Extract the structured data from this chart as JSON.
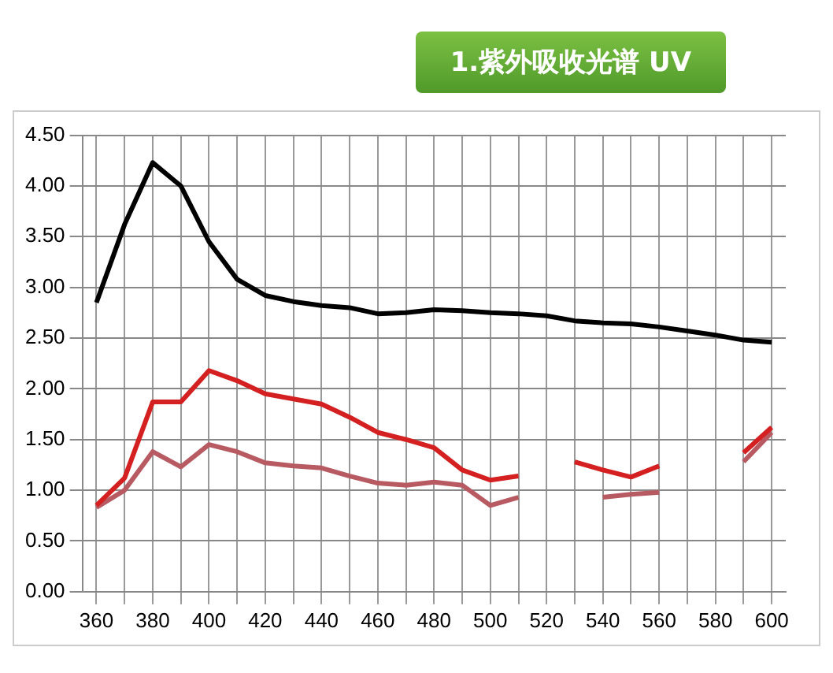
{
  "chart_data": {
    "type": "line",
    "title": "1.紫外吸收光谱 UV",
    "x": [
      360,
      370,
      380,
      390,
      400,
      410,
      420,
      430,
      440,
      450,
      460,
      470,
      480,
      490,
      500,
      510,
      520,
      530,
      540,
      550,
      560,
      570,
      580,
      590,
      600
    ],
    "series": [
      {
        "color": "#000000",
        "values": [
          2.85,
          3.62,
          4.23,
          4.0,
          3.45,
          3.08,
          2.92,
          2.86,
          2.82,
          2.8,
          2.74,
          2.75,
          2.78,
          2.77,
          2.75,
          2.74,
          2.72,
          2.67,
          2.65,
          2.64,
          2.61,
          2.57,
          2.53,
          2.48,
          2.46
        ]
      },
      {
        "color": "#d42020",
        "values": [
          0.85,
          1.12,
          1.87,
          1.87,
          2.18,
          2.08,
          1.95,
          1.9,
          1.85,
          1.72,
          1.57,
          1.5,
          1.42,
          1.2,
          1.1,
          1.14,
          null,
          1.28,
          1.2,
          1.13,
          1.24,
          null,
          null,
          1.37,
          1.62
        ]
      },
      {
        "color": "#b85a62",
        "values": [
          0.83,
          1.0,
          1.38,
          1.23,
          1.45,
          1.38,
          1.27,
          1.24,
          1.22,
          1.14,
          1.07,
          1.05,
          1.08,
          1.05,
          0.85,
          0.93,
          null,
          null,
          0.93,
          0.96,
          0.98,
          null,
          null,
          1.28,
          1.57
        ]
      }
    ],
    "xlim": [
      355,
      605
    ],
    "xticks": [
      360,
      {
        "value": 370,
        "label": null
      },
      380,
      {
        "value": 390,
        "label": null
      },
      400,
      {
        "value": 410,
        "label": null
      },
      420,
      {
        "value": 430,
        "label": null
      },
      440,
      {
        "value": 450,
        "label": null
      },
      460,
      {
        "value": 470,
        "label": null
      },
      480,
      {
        "value": 490,
        "label": null
      },
      500,
      {
        "value": 510,
        "label": null
      },
      520,
      {
        "value": 530,
        "label": null
      },
      540,
      {
        "value": 550,
        "label": null
      },
      560,
      {
        "value": 570,
        "label": null
      },
      580,
      {
        "value": 590,
        "label": null
      },
      600
    ],
    "ylim": [
      0,
      4.5
    ],
    "yticks": [
      {
        "value": 0,
        "label": "0.00"
      },
      {
        "value": 0.5,
        "label": "0.50"
      },
      {
        "value": 1,
        "label": "1.00"
      },
      {
        "value": 1.5,
        "label": "1.50"
      },
      {
        "value": 2,
        "label": "2.00"
      },
      {
        "value": 2.5,
        "label": "2.50"
      },
      {
        "value": 3,
        "label": "3.00"
      },
      {
        "value": 3.5,
        "label": "3.50"
      },
      {
        "value": 4,
        "label": "4.00"
      },
      {
        "value": 4.5,
        "label": "4.50"
      }
    ],
    "grid": true,
    "legend": false,
    "marker": "none",
    "line_style": "solid"
  }
}
